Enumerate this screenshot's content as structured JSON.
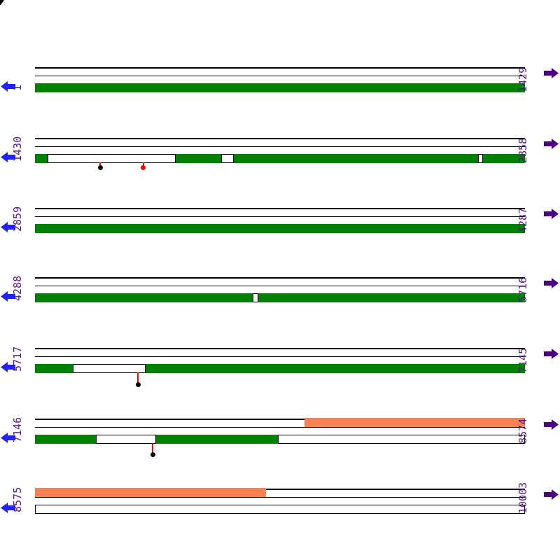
{
  "map": {
    "sequence_start": 1,
    "sequence_end": 10003,
    "bases_per_row": 1429,
    "colors": {
      "match": "#008000",
      "partial_match": "#FA8151",
      "left_arrow": "#2222FF",
      "right_arrow": "#4B0082",
      "label_text": "#551A8B",
      "marker_stem": "#FF0000",
      "marker_head_black": "#000000",
      "marker_head_red": "#FF0000",
      "track_line": "#000000"
    },
    "rows": [
      {
        "left_label": "1",
        "right_label": "1429",
        "start": 1,
        "end": 1429,
        "green_segments": [
          [
            1,
            1429
          ]
        ],
        "orange_segments": [],
        "markers": []
      },
      {
        "left_label": "1430",
        "right_label": "2858",
        "start": 1430,
        "end": 2858,
        "green_segments": [
          [
            1430,
            1467
          ],
          [
            1840,
            1973
          ],
          [
            2010,
            2722
          ],
          [
            2736,
            2858
          ]
        ],
        "orange_segments": [],
        "markers": [
          {
            "pos": 1620,
            "head": "black",
            "drop": 8
          },
          {
            "pos": 1746,
            "head": "red",
            "drop": 8
          }
        ]
      },
      {
        "left_label": "2859",
        "right_label": "4287",
        "start": 2859,
        "end": 4287,
        "green_segments": [
          [
            2859,
            4287
          ]
        ],
        "orange_segments": [],
        "markers": []
      },
      {
        "left_label": "4288",
        "right_label": "5716",
        "start": 4288,
        "end": 5716,
        "green_segments": [
          [
            4288,
            4923
          ],
          [
            4939,
            5716
          ]
        ],
        "orange_segments": [],
        "markers": []
      },
      {
        "left_label": "5717",
        "right_label": "7145",
        "start": 5717,
        "end": 7145,
        "green_segments": [
          [
            5717,
            5827
          ],
          [
            6040,
            7145
          ]
        ],
        "orange_segments": [],
        "markers": [
          {
            "pos": 6017,
            "head": "black",
            "drop": 18
          }
        ]
      },
      {
        "left_label": "7146",
        "right_label": "8574",
        "start": 7146,
        "end": 8574,
        "green_segments": [
          [
            7146,
            7324
          ],
          [
            7499,
            7854
          ]
        ],
        "orange_segments": [
          [
            7932,
            8574
          ]
        ],
        "markers": [
          {
            "pos": 7489,
            "head": "black",
            "drop": 17
          }
        ]
      },
      {
        "left_label": "8575",
        "right_label": "10003",
        "start": 8575,
        "end": 10003,
        "green_segments": [],
        "orange_segments": [
          [
            8575,
            9249
          ]
        ],
        "markers": []
      }
    ]
  }
}
